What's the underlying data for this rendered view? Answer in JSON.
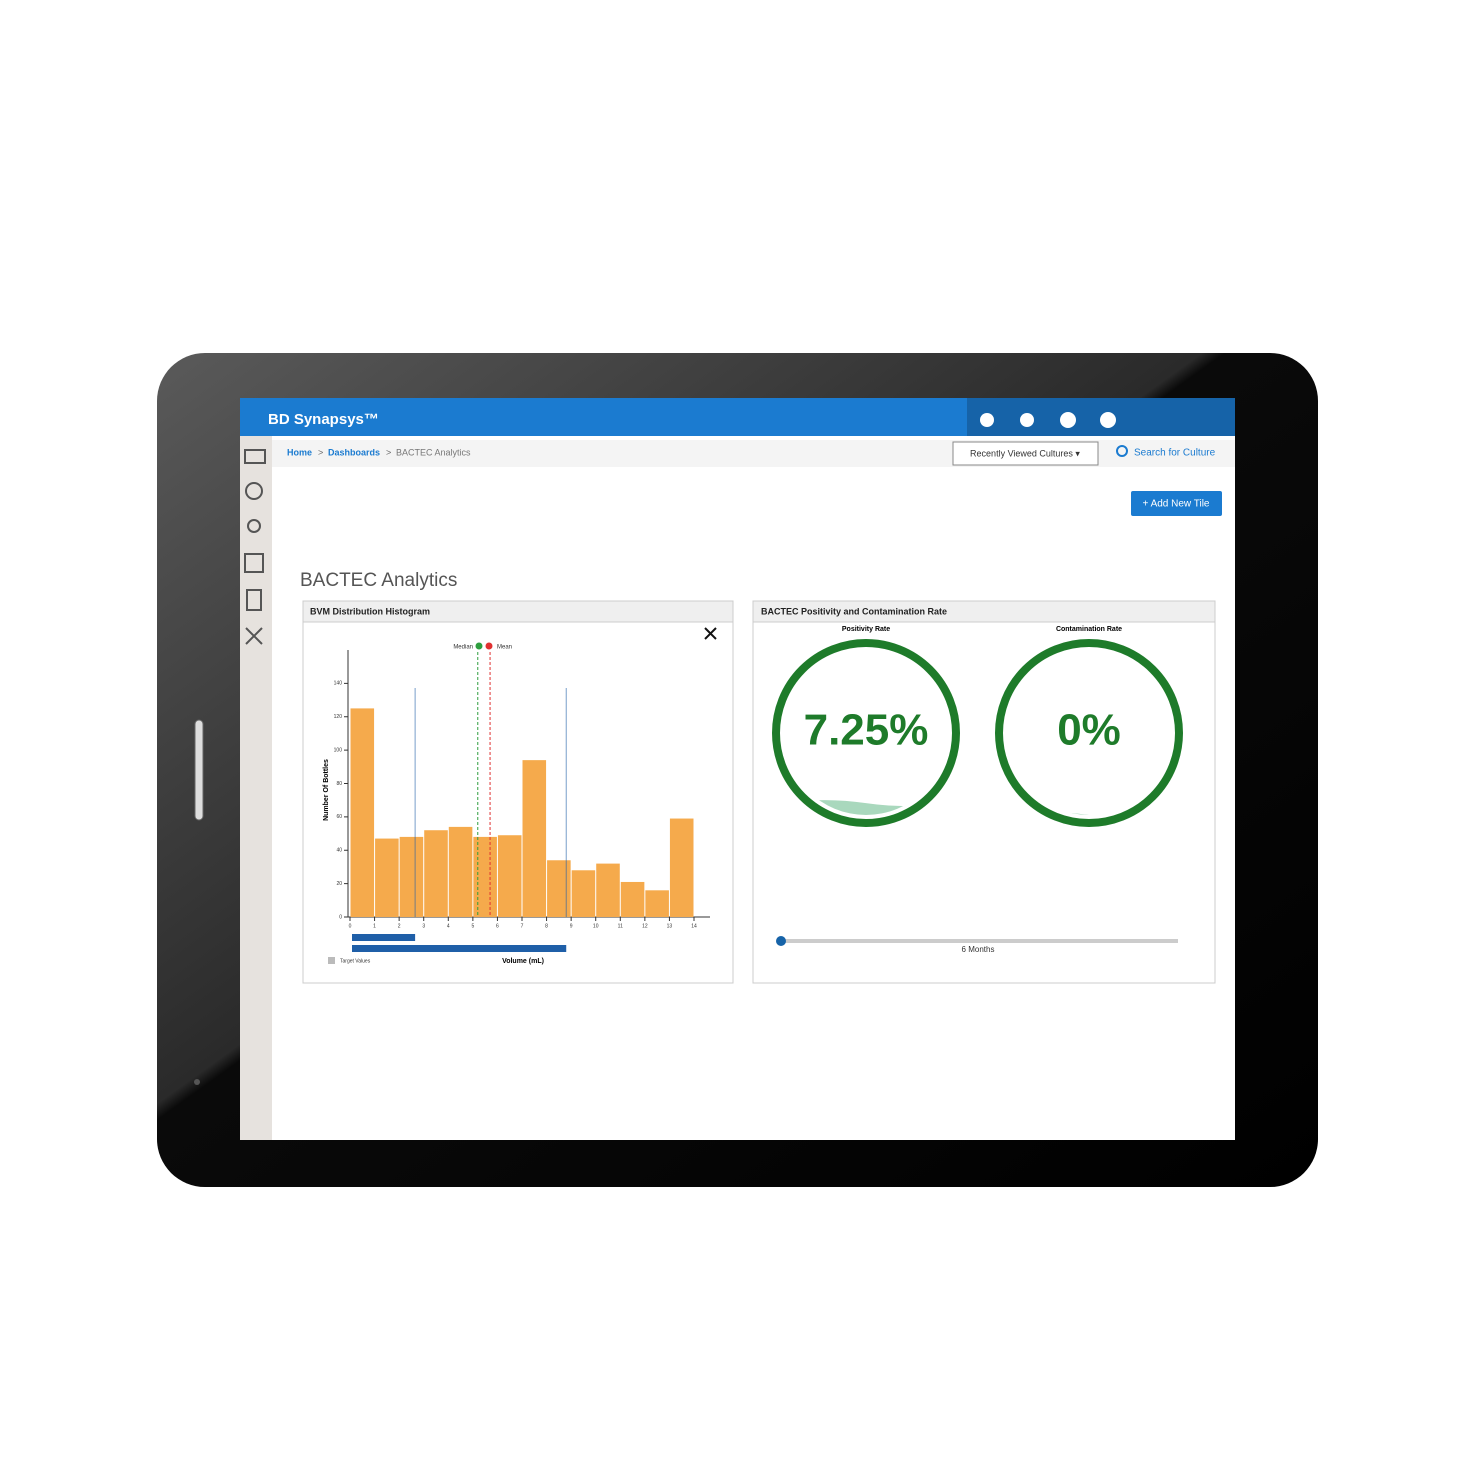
{
  "header": {
    "brand": "BD Synapsys™"
  },
  "breadcrumb": {
    "items": [
      "Home",
      "Dashboards",
      "BACTEC Analytics"
    ],
    "separator": ">"
  },
  "toolbar": {
    "recent": "Recently Viewed Cultures ▾",
    "search": "Search for Culture"
  },
  "add_tile": "+ Add New Tile",
  "page_title": "BACTEC Analytics",
  "chart_data": [
    {
      "type": "histogram",
      "title": "BVM Distribution Histogram",
      "bins": [
        0,
        1,
        2,
        3,
        4,
        5,
        6,
        7,
        8,
        9,
        10,
        11,
        12,
        13,
        14
      ],
      "values": [
        125,
        47,
        48,
        52,
        54,
        48,
        49,
        94,
        34,
        28,
        32,
        21,
        16,
        59
      ],
      "color": "#f5aa4c",
      "xlim": [
        0,
        14
      ],
      "xticks": [
        0,
        1,
        2,
        3,
        4,
        5,
        6,
        7,
        8,
        9,
        10,
        11,
        12,
        13,
        14
      ],
      "ylim": [
        0,
        160
      ],
      "yticks": [
        0,
        20,
        40,
        60,
        80,
        100,
        120,
        140
      ],
      "xlabel": "Volume (mL)",
      "ylabel": "Number Of Bottles",
      "markers": [
        {
          "name": "Median",
          "value": 5.2,
          "color": "#2e9e3e"
        },
        {
          "name": "Mean",
          "value": 5.7,
          "color": "#e03030"
        }
      ],
      "target_lines": [
        2.65,
        8.8
      ],
      "target_label": "Target Values",
      "target_color": "#1f5fa8"
    },
    {
      "type": "gauge",
      "title": "BACTEC Positivity and Contamination Rate",
      "categories": [
        "Positivity Rate",
        "Contamination Rate"
      ],
      "values": [
        7.25,
        0
      ],
      "value_labels": [
        "7.25%",
        "0%"
      ],
      "ylim": [
        0,
        100
      ],
      "color": "#1e7b2a",
      "fill_color": "#a9d8bd",
      "slider_label": "6 Months"
    }
  ]
}
